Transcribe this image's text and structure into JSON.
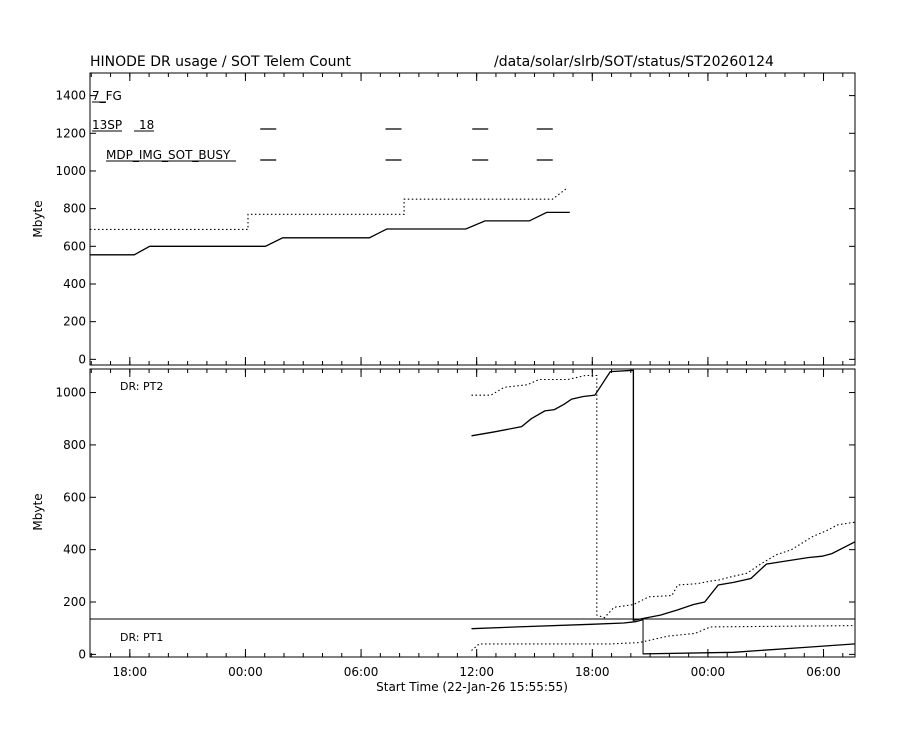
{
  "header": {
    "title": "HINODE DR usage / SOT Telem Count",
    "path": "/data/solar/slrb/SOT/status/ST20260124"
  },
  "xaxis": {
    "label": "Start Time (22-Jan-26 15:55:55)",
    "ticks": [
      {
        "t": 2.0667,
        "label": "18:00"
      },
      {
        "t": 8.0667,
        "label": "00:00"
      },
      {
        "t": 14.0667,
        "label": "06:00"
      },
      {
        "t": 20.0667,
        "label": "12:00"
      },
      {
        "t": 26.0667,
        "label": "18:00"
      },
      {
        "t": 32.0667,
        "label": "00:00"
      },
      {
        "t": 38.0667,
        "label": "06:00"
      }
    ],
    "range": [
      0,
      39.7
    ]
  },
  "chart_data": [
    {
      "type": "line",
      "panel": "top",
      "ylabel": "Mbyte",
      "ylim": [
        -30,
        1520
      ],
      "yticks": [
        0,
        200,
        400,
        600,
        800,
        1000,
        1200,
        1400
      ],
      "legend_labels": [
        "7_FG",
        "13SP",
        "18",
        "MDP_IMG_SOT_BUSY"
      ],
      "busy_marks": [
        {
          "row": "SP",
          "t": [
            9.25,
            15.75,
            20.25,
            23.6
          ]
        },
        {
          "row": "BUSY",
          "t": [
            9.25,
            15.75,
            20.25,
            23.6
          ]
        }
      ],
      "series": [
        {
          "style": "solid",
          "points": [
            [
              0,
              555
            ],
            [
              2.3,
              555
            ],
            [
              3.1,
              600
            ],
            [
              9.1,
              600
            ],
            [
              10.0,
              645
            ],
            [
              14.5,
              645
            ],
            [
              15.4,
              692
            ],
            [
              19.5,
              692
            ],
            [
              20.5,
              735
            ],
            [
              22.8,
              735
            ],
            [
              23.7,
              780
            ],
            [
              24.9,
              780
            ]
          ]
        },
        {
          "style": "dotted",
          "points": [
            [
              0,
              690
            ],
            [
              8.2,
              690
            ],
            [
              8.2,
              770
            ],
            [
              16.3,
              770
            ],
            [
              16.3,
              850
            ],
            [
              24.0,
              850
            ],
            [
              24.7,
              905
            ]
          ]
        }
      ]
    },
    {
      "type": "line",
      "panel": "bottom",
      "ylabel": "Mbyte",
      "ylim": [
        -10,
        1090
      ],
      "yticks": [
        0,
        200,
        400,
        600,
        800,
        1000
      ],
      "annotations": [
        "DR: PT2",
        "DR: PT1"
      ],
      "series": [
        {
          "name": "DR: PT2",
          "style": "solid",
          "points": [
            [
              19.8,
              835
            ],
            [
              21.0,
              850
            ],
            [
              22.4,
              870
            ],
            [
              22.9,
              900
            ],
            [
              23.6,
              930
            ],
            [
              24.1,
              935
            ],
            [
              24.6,
              955
            ],
            [
              25.0,
              975
            ],
            [
              25.6,
              985
            ],
            [
              26.2,
              990
            ],
            [
              27.0,
              1080
            ],
            [
              28.2,
              1085
            ],
            [
              28.2,
              130
            ],
            [
              29.6,
              150
            ],
            [
              30.5,
              170
            ],
            [
              31.3,
              190
            ],
            [
              31.9,
              200
            ],
            [
              32.6,
              265
            ],
            [
              33.4,
              275
            ],
            [
              34.3,
              290
            ],
            [
              35.1,
              345
            ],
            [
              36.0,
              355
            ],
            [
              37.3,
              370
            ],
            [
              38.0,
              375
            ],
            [
              38.5,
              385
            ],
            [
              39.7,
              430
            ]
          ]
        },
        {
          "name": "DR: PT2",
          "style": "dotted",
          "points": [
            [
              19.8,
              990
            ],
            [
              20.8,
              990
            ],
            [
              21.5,
              1020
            ],
            [
              22.7,
              1030
            ],
            [
              23.3,
              1050
            ],
            [
              24.8,
              1050
            ],
            [
              25.7,
              1065
            ],
            [
              26.3,
              1065
            ],
            [
              26.3,
              150
            ],
            [
              26.7,
              140
            ],
            [
              27.2,
              180
            ],
            [
              28.2,
              190
            ],
            [
              29.0,
              220
            ],
            [
              30.2,
              225
            ],
            [
              30.5,
              265
            ],
            [
              31.5,
              270
            ],
            [
              32.2,
              280
            ],
            [
              32.7,
              285
            ],
            [
              33.2,
              295
            ],
            [
              34.1,
              310
            ],
            [
              34.8,
              345
            ],
            [
              35.6,
              380
            ],
            [
              36.4,
              400
            ],
            [
              37.5,
              450
            ],
            [
              38.3,
              475
            ],
            [
              38.8,
              495
            ],
            [
              39.7,
              505
            ]
          ]
        },
        {
          "name": "DR: PT1",
          "style": "solid",
          "points": [
            [
              19.8,
              98
            ],
            [
              22.2,
              105
            ],
            [
              26.0,
              115
            ],
            [
              27.7,
              120
            ],
            [
              28.3,
              125
            ],
            [
              28.7,
              132
            ]
          ]
        },
        {
          "name": "DR: PT1",
          "style": "dotted",
          "points": [
            [
              19.8,
              15
            ],
            [
              20.2,
              40
            ],
            [
              27.0,
              40
            ],
            [
              28.5,
              45
            ],
            [
              30.0,
              70
            ],
            [
              31.4,
              80
            ],
            [
              32.2,
              105
            ],
            [
              39.7,
              110
            ]
          ]
        },
        {
          "name": "DR: PT1",
          "style": "solid",
          "points": [
            [
              28.7,
              2
            ],
            [
              33.4,
              8
            ],
            [
              37.3,
              28
            ],
            [
              39.7,
              40
            ]
          ]
        }
      ],
      "hline": 135,
      "vlines": [
        {
          "t": 28.2,
          "from": 130,
          "to": 1085
        },
        {
          "t": 28.7,
          "from": 0,
          "to": 135
        }
      ]
    }
  ]
}
